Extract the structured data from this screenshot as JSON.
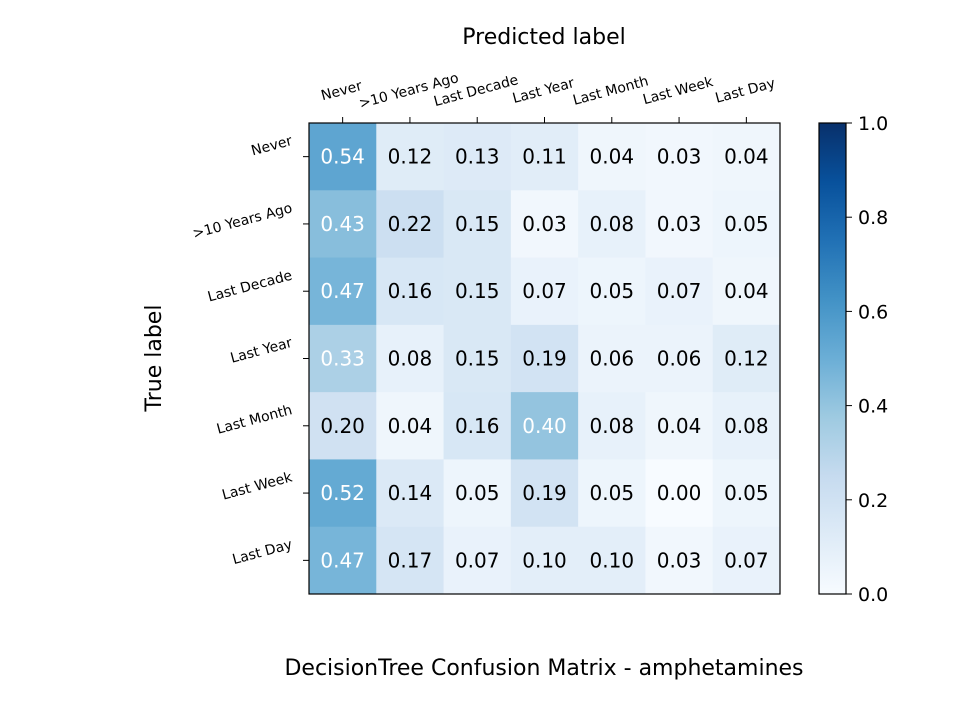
{
  "chart_data": {
    "type": "heatmap",
    "title": "DecisionTree Confusion Matrix - amphetamines",
    "xlabel": "Predicted label",
    "ylabel": "True label",
    "x_categories": [
      "Never",
      ">10 Years Ago",
      "Last Decade",
      "Last Year",
      "Last Month",
      "Last Week",
      "Last Day"
    ],
    "y_categories": [
      "Never",
      ">10 Years Ago",
      "Last Decade",
      "Last Year",
      "Last Month",
      "Last Week",
      "Last Day"
    ],
    "values": [
      [
        0.54,
        0.12,
        0.13,
        0.11,
        0.04,
        0.03,
        0.04
      ],
      [
        0.43,
        0.22,
        0.15,
        0.03,
        0.08,
        0.03,
        0.05
      ],
      [
        0.47,
        0.16,
        0.15,
        0.07,
        0.05,
        0.07,
        0.04
      ],
      [
        0.33,
        0.08,
        0.15,
        0.19,
        0.06,
        0.06,
        0.12
      ],
      [
        0.2,
        0.04,
        0.16,
        0.4,
        0.08,
        0.04,
        0.08
      ],
      [
        0.52,
        0.14,
        0.05,
        0.19,
        0.05,
        0.0,
        0.05
      ],
      [
        0.47,
        0.17,
        0.07,
        0.1,
        0.1,
        0.03,
        0.07
      ]
    ],
    "value_format": "0.00",
    "colormap": "Blues",
    "vmin": 0.0,
    "vmax": 1.0,
    "colorbar": {
      "ticks": [
        0.0,
        0.2,
        0.4,
        0.6,
        0.8,
        1.0
      ],
      "tick_labels": [
        "0.0",
        "0.2",
        "0.4",
        "0.6",
        "0.8",
        "1.0"
      ]
    },
    "x_tick_position": "top",
    "text_color_light": "#ffffff",
    "text_color_dark": "#000000"
  }
}
